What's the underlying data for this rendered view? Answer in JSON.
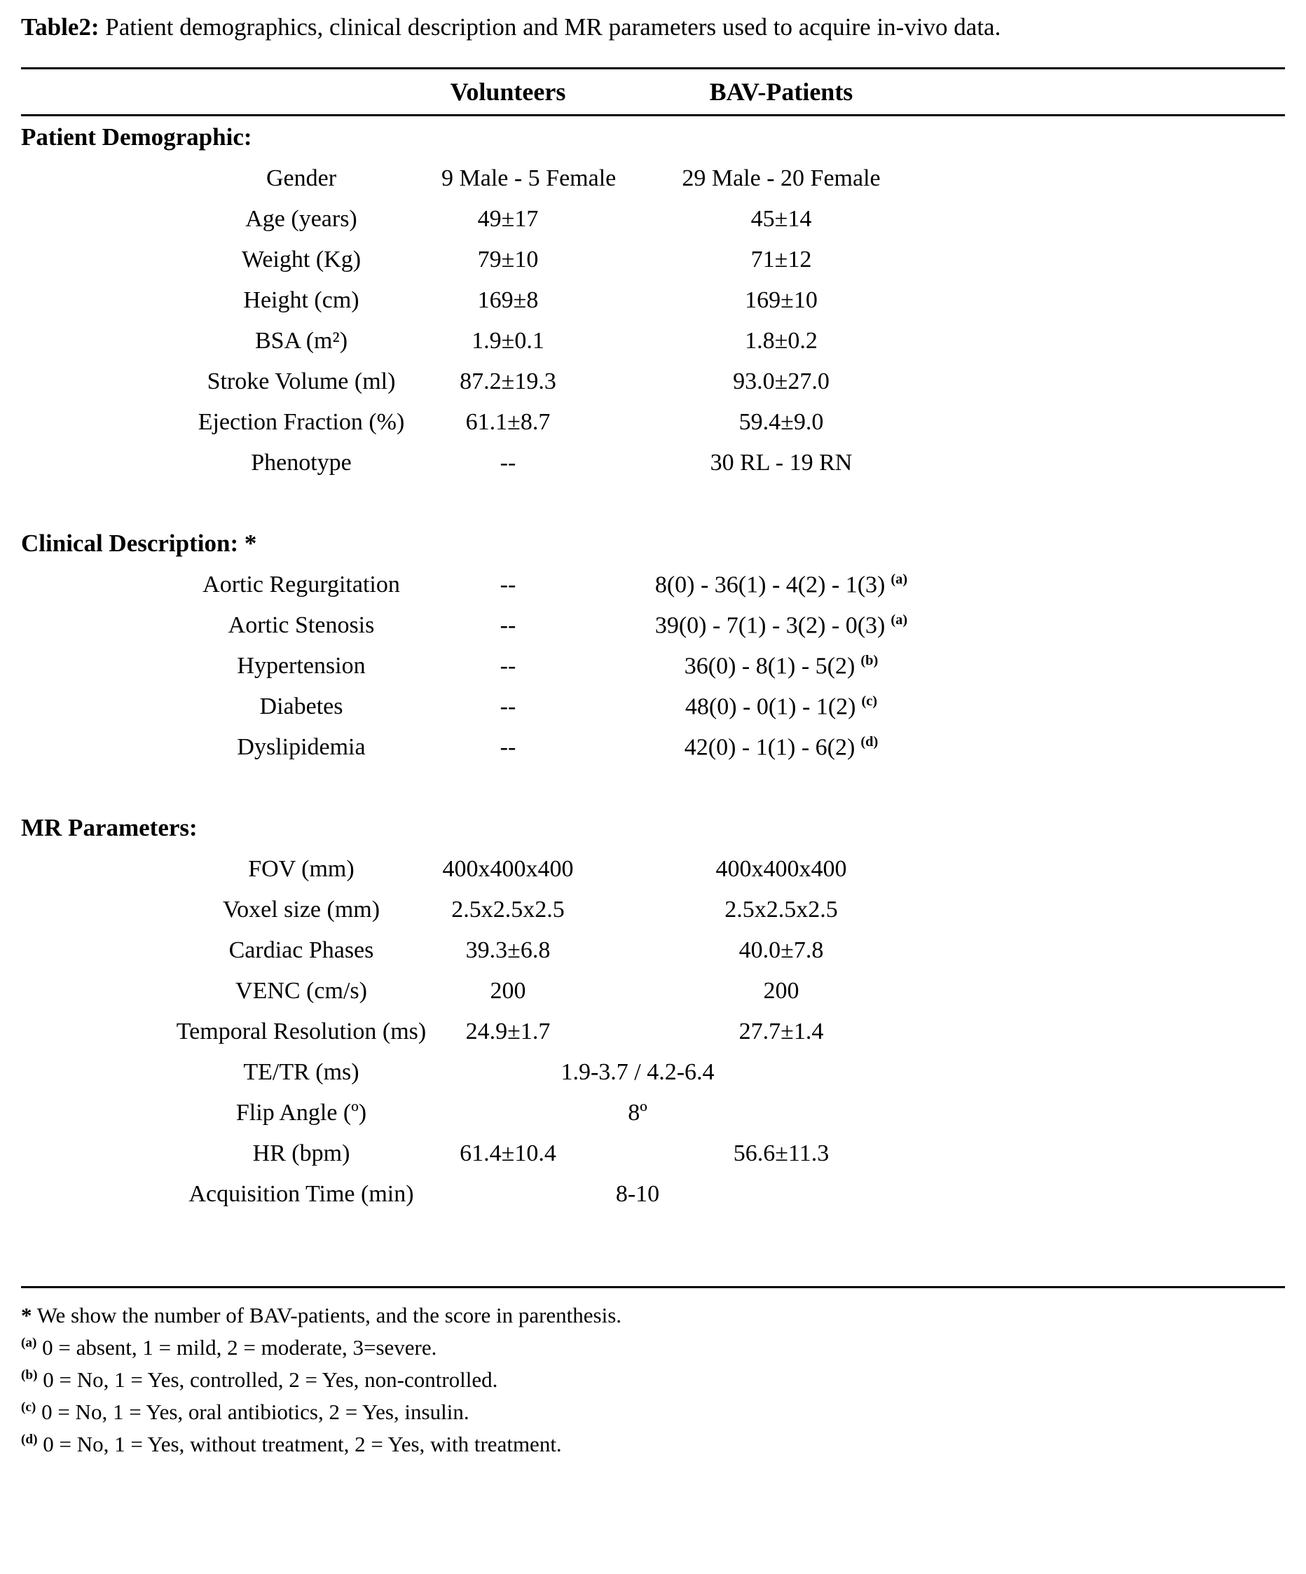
{
  "caption": {
    "label": "Table2:",
    "text": " Patient demographics, clinical description and MR parameters used to acquire in-vivo data."
  },
  "columns": {
    "volunteers": "Volunteers",
    "bav": "BAV-Patients"
  },
  "sections": [
    {
      "title": "Patient Demographic:",
      "rows": [
        {
          "label": "Gender",
          "volunteers": "9 Male - 5 Female",
          "bav": "29 Male - 20 Female"
        },
        {
          "label": "Age (years)",
          "volunteers": "49±17",
          "bav": "45±14"
        },
        {
          "label": "Weight (Kg)",
          "volunteers": "79±10",
          "bav": "71±12"
        },
        {
          "label": "Height (cm)",
          "volunteers": "169±8",
          "bav": "169±10"
        },
        {
          "label": "BSA (m²)",
          "volunteers": "1.9±0.1",
          "bav": "1.8±0.2"
        },
        {
          "label": "Stroke Volume (ml)",
          "volunteers": "87.2±19.3",
          "bav": "93.0±27.0"
        },
        {
          "label": "Ejection Fraction (%)",
          "volunteers": "61.1±8.7",
          "bav": "59.4±9.0"
        },
        {
          "label": "Phenotype",
          "volunteers": "--",
          "bav": "30 RL - 19 RN"
        }
      ]
    },
    {
      "title": "Clinical Description: *",
      "rows": [
        {
          "label": "Aortic Regurgitation",
          "volunteers": "--",
          "bav": "8(0) - 36(1) - 4(2) - 1(3)",
          "bav_sup": "(a)"
        },
        {
          "label": "Aortic Stenosis",
          "volunteers": "--",
          "bav": "39(0) - 7(1) - 3(2) - 0(3)",
          "bav_sup": "(a)"
        },
        {
          "label": "Hypertension",
          "volunteers": "--",
          "bav": "36(0) - 8(1) - 5(2)",
          "bav_sup": "(b)"
        },
        {
          "label": "Diabetes",
          "volunteers": "--",
          "bav": "48(0) - 0(1) - 1(2)",
          "bav_sup": "(c)"
        },
        {
          "label": "Dyslipidemia",
          "volunteers": "--",
          "bav": "42(0) - 1(1) - 6(2)",
          "bav_sup": "(d)"
        }
      ]
    },
    {
      "title": "MR Parameters:",
      "rows": [
        {
          "label": "FOV (mm)",
          "volunteers": "400x400x400",
          "bav": "400x400x400"
        },
        {
          "label": "Voxel size (mm)",
          "volunteers": "2.5x2.5x2.5",
          "bav": "2.5x2.5x2.5"
        },
        {
          "label": "Cardiac Phases",
          "volunteers": "39.3±6.8",
          "bav": "40.0±7.8"
        },
        {
          "label": "VENC (cm/s)",
          "volunteers": "200",
          "bav": "200"
        },
        {
          "label": "Temporal Resolution (ms)",
          "volunteers": "24.9±1.7",
          "bav": "27.7±1.4"
        },
        {
          "label": "TE/TR (ms)",
          "span": "1.9-3.7 / 4.2-6.4"
        },
        {
          "label": "Flip Angle (º)",
          "span": "8º"
        },
        {
          "label": "HR (bpm)",
          "volunteers": "61.4±10.4",
          "bav": "56.6±11.3"
        },
        {
          "label": "Acquisition Time (min)",
          "span": "8-10"
        }
      ]
    }
  ],
  "footnotes": [
    {
      "marker": "*",
      "sup": false,
      "text": "We show the number of BAV-patients, and the score in parenthesis."
    },
    {
      "marker": "(a)",
      "sup": true,
      "text": "0 = absent, 1 = mild, 2 = moderate, 3=severe."
    },
    {
      "marker": "(b)",
      "sup": true,
      "text": "0 = No, 1 = Yes, controlled, 2 = Yes, non-controlled."
    },
    {
      "marker": "(c)",
      "sup": true,
      "text": "0 = No, 1 = Yes, oral antibiotics, 2 = Yes, insulin."
    },
    {
      "marker": "(d)",
      "sup": true,
      "text": "0 = No, 1 = Yes, without treatment, 2 = Yes, with treatment."
    }
  ]
}
